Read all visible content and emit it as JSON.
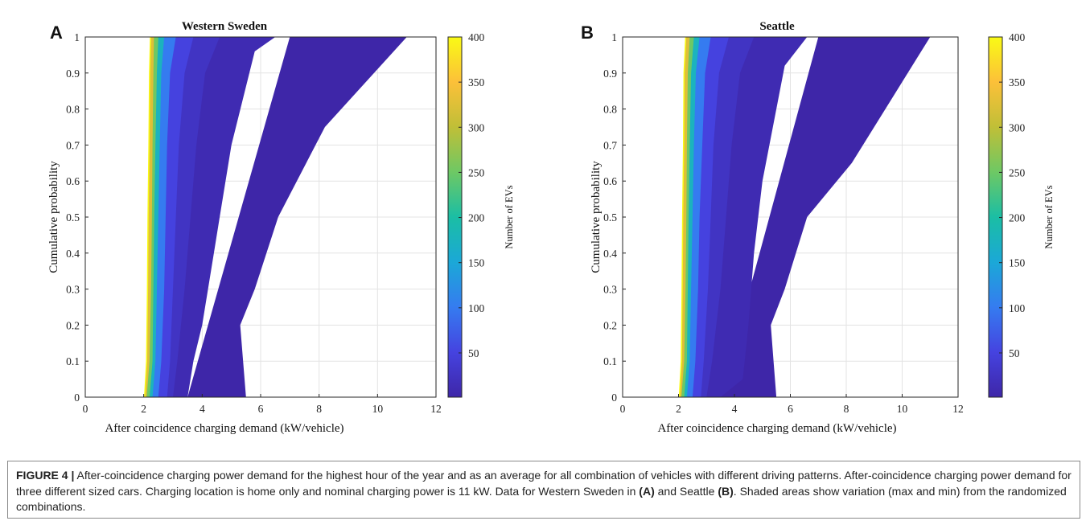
{
  "caption": {
    "figure_label": "FIGURE 4 |",
    "seg1": " After-coincidence charging power demand for the highest hour of the year and as an average for all combination of vehicles with different driving patterns. After-coincidence charging power demand for three different sized cars. Charging location is home only and nominal charging power is 11 kW. Data for Western Sweden in ",
    "ref_a": "(A)",
    "seg2": " and Seattle ",
    "ref_b": "(B)",
    "seg3": ". Shaded areas show variation (max and min) from the randomized combinations."
  },
  "colors": {
    "colormap": [
      "#3e26a8",
      "#4543e0",
      "#357cf0",
      "#1ba8d7",
      "#1bbea4",
      "#6ec864",
      "#c0bf37",
      "#fcc039",
      "#f9fa15"
    ],
    "grid": "#e3e3e3",
    "frame": "#262626"
  },
  "chart_data": [
    {
      "type": "area",
      "panel_label": "A",
      "title": "Western Sweden",
      "xlabel": "After coincidence charging demand (kW/vehicle)",
      "ylabel": "Cumulative probability",
      "xlim": [
        0,
        12
      ],
      "ylim": [
        0,
        1
      ],
      "xticks": [
        0,
        2,
        4,
        6,
        8,
        10,
        12
      ],
      "yticks": [
        0,
        0.1,
        0.2,
        0.3,
        0.4,
        0.5,
        0.6,
        0.7,
        0.8,
        0.9,
        1
      ],
      "grid": true,
      "colorbar": {
        "label": "Number of EVs",
        "range": [
          1,
          400
        ],
        "ticks": [
          50,
          100,
          150,
          200,
          250,
          300,
          350,
          400
        ]
      },
      "series": [
        {
          "number_of_evs": 1,
          "p": [
            0,
            0.1,
            0.2,
            0.3,
            0.5,
            0.75,
            1.0,
            1.0
          ],
          "kw": [
            5.5,
            5.4,
            5.3,
            5.8,
            6.6,
            8.2,
            11.0,
            7.0
          ]
        },
        {
          "number_of_evs": 10,
          "p": [
            0,
            0.1,
            0.2,
            0.3,
            0.4,
            0.5,
            0.7,
            0.96,
            1.0
          ],
          "kw": [
            3.5,
            3.7,
            4.0,
            4.2,
            4.4,
            4.6,
            5.0,
            5.8,
            6.5
          ]
        },
        {
          "number_of_evs": 25,
          "p": [
            0,
            0.1,
            0.3,
            0.5,
            0.7,
            0.9,
            1.0
          ],
          "kw": [
            3.0,
            3.15,
            3.4,
            3.6,
            3.8,
            4.1,
            4.6
          ]
        },
        {
          "number_of_evs": 50,
          "p": [
            0,
            0.1,
            0.3,
            0.5,
            0.7,
            0.9,
            1.0
          ],
          "kw": [
            2.8,
            2.9,
            3.0,
            3.1,
            3.2,
            3.4,
            3.7
          ]
        },
        {
          "number_of_evs": 100,
          "p": [
            0,
            0.1,
            0.3,
            0.5,
            0.7,
            0.9,
            1.0
          ],
          "kw": [
            2.5,
            2.6,
            2.7,
            2.75,
            2.8,
            2.9,
            3.1
          ]
        },
        {
          "number_of_evs": 175,
          "p": [
            0,
            0.1,
            0.3,
            0.5,
            0.7,
            0.9,
            1.0
          ],
          "kw": [
            2.3,
            2.4,
            2.45,
            2.5,
            2.55,
            2.6,
            2.7
          ]
        },
        {
          "number_of_evs": 250,
          "p": [
            0,
            0.1,
            0.3,
            0.5,
            0.7,
            0.9,
            1.0
          ],
          "kw": [
            2.2,
            2.3,
            2.33,
            2.36,
            2.4,
            2.45,
            2.5
          ]
        },
        {
          "number_of_evs": 325,
          "p": [
            0,
            0.1,
            0.3,
            0.5,
            0.7,
            0.9,
            1.0
          ],
          "kw": [
            2.1,
            2.2,
            2.25,
            2.28,
            2.3,
            2.33,
            2.35
          ]
        },
        {
          "number_of_evs": 400,
          "p": [
            0,
            0.1,
            0.3,
            0.5,
            0.7,
            0.9,
            1.0
          ],
          "kw": [
            2.05,
            2.12,
            2.15,
            2.17,
            2.2,
            2.22,
            2.25
          ]
        }
      ]
    },
    {
      "type": "area",
      "panel_label": "B",
      "title": "Seattle",
      "xlabel": "After coincidence charging demand (kW/vehicle)",
      "ylabel": "Cumulative probability",
      "xlim": [
        0,
        12
      ],
      "ylim": [
        0,
        1
      ],
      "xticks": [
        0,
        2,
        4,
        6,
        8,
        10,
        12
      ],
      "yticks": [
        0,
        0.1,
        0.2,
        0.3,
        0.4,
        0.5,
        0.6,
        0.7,
        0.8,
        0.9,
        1
      ],
      "grid": true,
      "colorbar": {
        "label": "Number of EVs",
        "range": [
          1,
          400
        ],
        "ticks": [
          50,
          100,
          150,
          200,
          250,
          300,
          350,
          400
        ]
      },
      "series": [
        {
          "number_of_evs": 1,
          "p": [
            0,
            0.1,
            0.2,
            0.3,
            0.5,
            0.65,
            1.0,
            1.0
          ],
          "kw": [
            5.5,
            5.4,
            5.3,
            5.8,
            6.6,
            8.2,
            11.0,
            7.0
          ]
        },
        {
          "number_of_evs": 10,
          "p": [
            0,
            0.05,
            0.2,
            0.4,
            0.6,
            0.8,
            0.92,
            1.0
          ],
          "kw": [
            3.5,
            4.3,
            4.5,
            4.7,
            5.0,
            5.5,
            5.8,
            6.6
          ]
        },
        {
          "number_of_evs": 25,
          "p": [
            0,
            0.1,
            0.3,
            0.5,
            0.7,
            0.9,
            1.0
          ],
          "kw": [
            3.0,
            3.2,
            3.5,
            3.7,
            3.9,
            4.2,
            4.7
          ]
        },
        {
          "number_of_evs": 50,
          "p": [
            0,
            0.1,
            0.3,
            0.5,
            0.7,
            0.9,
            1.0
          ],
          "kw": [
            2.8,
            2.9,
            3.05,
            3.15,
            3.25,
            3.45,
            3.8
          ]
        },
        {
          "number_of_evs": 100,
          "p": [
            0,
            0.1,
            0.3,
            0.5,
            0.7,
            0.9,
            1.0
          ],
          "kw": [
            2.5,
            2.6,
            2.7,
            2.75,
            2.85,
            2.95,
            3.15
          ]
        },
        {
          "number_of_evs": 175,
          "p": [
            0,
            0.1,
            0.3,
            0.5,
            0.7,
            0.9,
            1.0
          ],
          "kw": [
            2.3,
            2.4,
            2.45,
            2.5,
            2.55,
            2.62,
            2.75
          ]
        },
        {
          "number_of_evs": 250,
          "p": [
            0,
            0.1,
            0.3,
            0.5,
            0.7,
            0.9,
            1.0
          ],
          "kw": [
            2.2,
            2.3,
            2.33,
            2.36,
            2.4,
            2.45,
            2.55
          ]
        },
        {
          "number_of_evs": 325,
          "p": [
            0,
            0.1,
            0.3,
            0.5,
            0.7,
            0.9,
            1.0
          ],
          "kw": [
            2.1,
            2.2,
            2.25,
            2.28,
            2.3,
            2.33,
            2.4
          ]
        },
        {
          "number_of_evs": 400,
          "p": [
            0,
            0.1,
            0.3,
            0.5,
            0.7,
            0.9,
            1.0
          ],
          "kw": [
            2.05,
            2.12,
            2.15,
            2.17,
            2.2,
            2.22,
            2.28
          ]
        }
      ]
    }
  ]
}
